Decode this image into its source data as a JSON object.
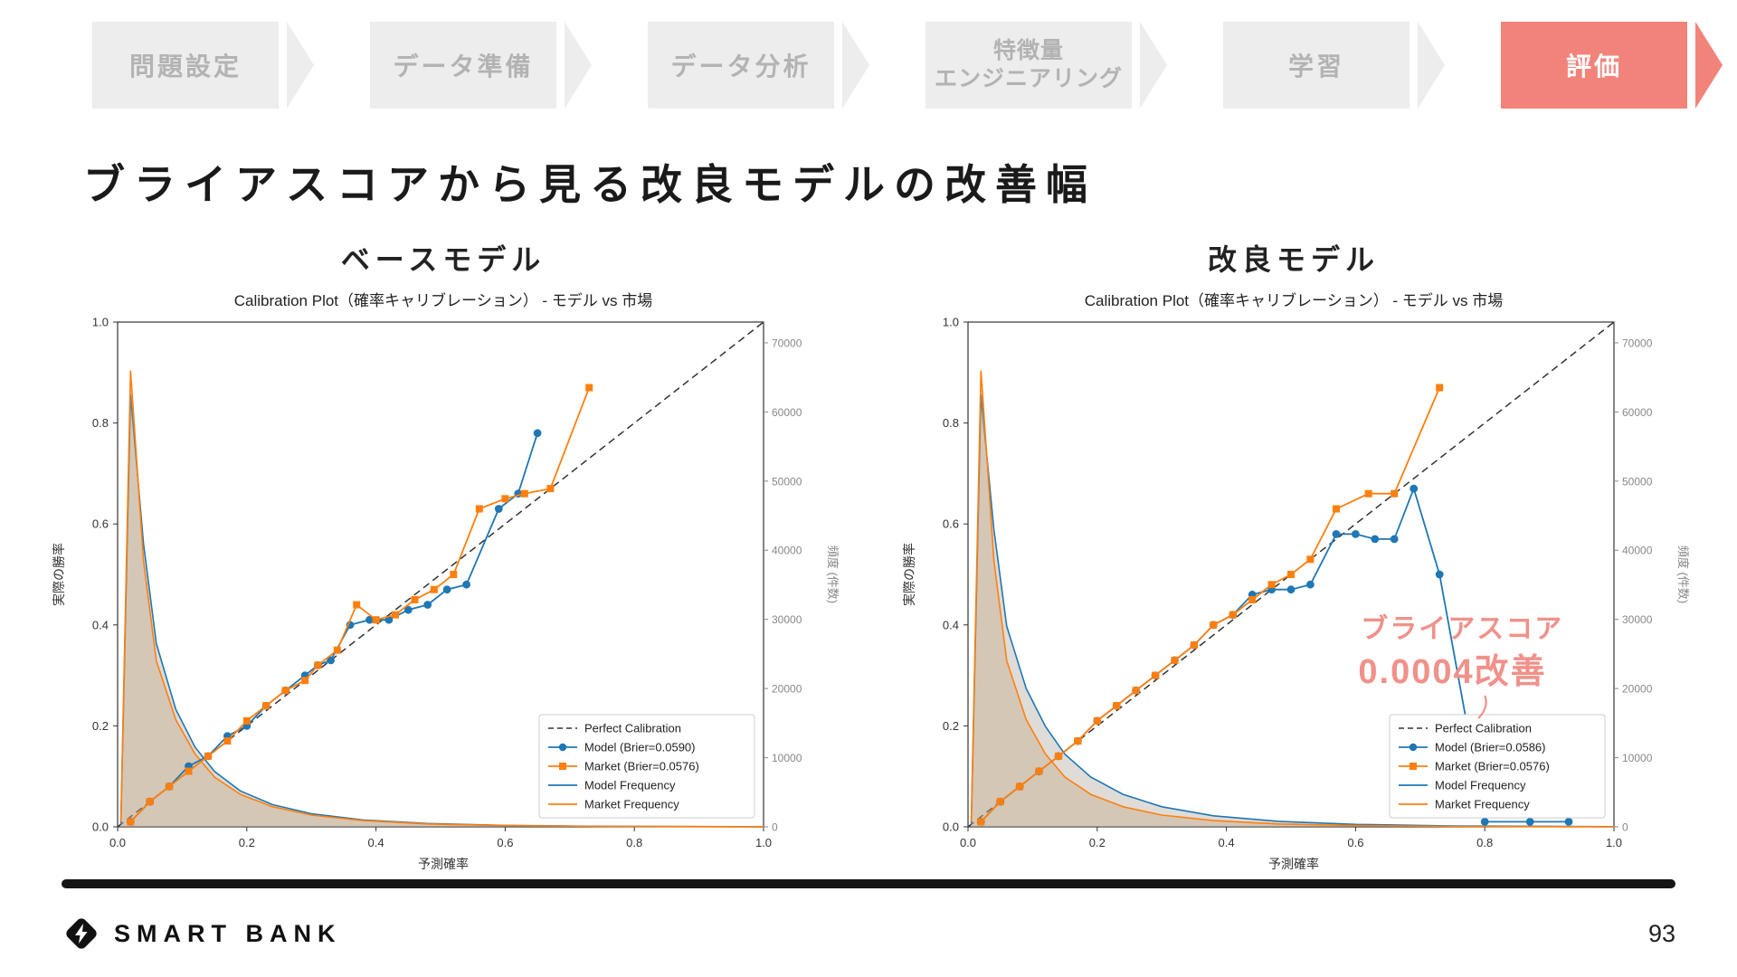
{
  "colors": {
    "accent_salmon": "#f2837b",
    "step_box_gray": "#ededed",
    "step_text_gray": "#b3b3b3",
    "annotation_salmon": "#f0918a",
    "model_blue": "#1f77b4",
    "market_orange": "#ff7f0e"
  },
  "flow": {
    "steps": [
      {
        "label": "問題設定",
        "active": false
      },
      {
        "label": "データ準備",
        "active": false
      },
      {
        "label": "データ分析",
        "active": false
      },
      {
        "lines": [
          "特徴量",
          "エンジニアリング"
        ],
        "active": false
      },
      {
        "label": "学習",
        "active": false
      },
      {
        "label": "評価",
        "active": true
      }
    ]
  },
  "title": "ブライアスコアから見る改良モデルの改善幅",
  "footer": {
    "brand": "SMART BANK",
    "page_number": "93"
  },
  "chart_data": [
    {
      "type": "line",
      "panel_label": "ベースモデル",
      "title": "Calibration Plot（確率キャリブレーション） - モデル vs 市場",
      "xlabel": "予測確率",
      "ylabel_left": "実際の勝率",
      "ylabel_right": "頻度 (件数)",
      "xlim": [
        0,
        1
      ],
      "ylim_left": [
        0,
        1
      ],
      "ylim_right": [
        0,
        73000
      ],
      "x_ticks": [
        0,
        0.2,
        0.4,
        0.6,
        0.8,
        1
      ],
      "y_ticks_left": [
        0,
        0.2,
        0.4,
        0.6,
        0.8,
        1
      ],
      "y_ticks_right": [
        0,
        10000,
        20000,
        30000,
        40000,
        50000,
        60000,
        70000
      ],
      "legend": [
        {
          "label": "Perfect Calibration",
          "style": "dashed",
          "color": "#333333"
        },
        {
          "label": "Model (Brier=0.0590)",
          "style": "line-circle",
          "color": "#1f77b4"
        },
        {
          "label": "Market (Brier=0.0576)",
          "style": "line-square",
          "color": "#ff7f0e"
        },
        {
          "label": "Model Frequency",
          "style": "line",
          "color": "#1f77b4"
        },
        {
          "label": "Market Frequency",
          "style": "line",
          "color": "#ff7f0e"
        }
      ],
      "series": [
        {
          "name": "Model (Brier=0.0590)",
          "kind": "calibration",
          "color": "#1f77b4",
          "marker": "circle",
          "x": [
            0.02,
            0.05,
            0.08,
            0.11,
            0.14,
            0.17,
            0.2,
            0.23,
            0.26,
            0.29,
            0.31,
            0.33,
            0.36,
            0.39,
            0.42,
            0.45,
            0.48,
            0.51,
            0.54,
            0.59,
            0.62,
            0.65
          ],
          "y": [
            0.01,
            0.05,
            0.08,
            0.12,
            0.14,
            0.18,
            0.2,
            0.24,
            0.27,
            0.3,
            0.32,
            0.33,
            0.4,
            0.41,
            0.41,
            0.43,
            0.44,
            0.47,
            0.48,
            0.63,
            0.66,
            0.78
          ]
        },
        {
          "name": "Market (Brier=0.0576)",
          "kind": "calibration",
          "color": "#ff7f0e",
          "marker": "square",
          "x": [
            0.02,
            0.05,
            0.08,
            0.11,
            0.14,
            0.17,
            0.2,
            0.23,
            0.26,
            0.29,
            0.31,
            0.34,
            0.37,
            0.4,
            0.43,
            0.46,
            0.49,
            0.52,
            0.56,
            0.6,
            0.63,
            0.67,
            0.73
          ],
          "y": [
            0.01,
            0.05,
            0.08,
            0.11,
            0.14,
            0.17,
            0.21,
            0.24,
            0.27,
            0.29,
            0.32,
            0.35,
            0.44,
            0.41,
            0.42,
            0.45,
            0.47,
            0.5,
            0.63,
            0.65,
            0.66,
            0.67,
            0.87
          ]
        },
        {
          "name": "Model Frequency",
          "kind": "frequency",
          "color": "#1f77b4",
          "fill": "rgba(150,140,125,0.30)",
          "x": [
            0.005,
            0.02,
            0.04,
            0.06,
            0.09,
            0.12,
            0.15,
            0.19,
            0.24,
            0.3,
            0.38,
            0.48,
            0.6,
            0.75,
            1.0
          ],
          "y": [
            500,
            62500,
            41000,
            26500,
            17000,
            11500,
            8000,
            5200,
            3200,
            1900,
            1000,
            480,
            210,
            80,
            15
          ]
        },
        {
          "name": "Market Frequency",
          "kind": "frequency",
          "color": "#ff7f0e",
          "fill": "rgba(196,160,120,0.35)",
          "x": [
            0.005,
            0.02,
            0.04,
            0.06,
            0.09,
            0.12,
            0.15,
            0.19,
            0.24,
            0.3,
            0.38,
            0.48,
            0.6,
            0.75,
            1.0
          ],
          "y": [
            800,
            66000,
            38500,
            24000,
            15500,
            10500,
            7200,
            4700,
            2900,
            1700,
            900,
            420,
            180,
            70,
            12
          ]
        }
      ]
    },
    {
      "type": "line",
      "panel_label": "改良モデル",
      "title": "Calibration Plot（確率キャリブレーション） - モデル vs 市場",
      "xlabel": "予測確率",
      "ylabel_left": "実際の勝率",
      "ylabel_right": "頻度 (件数)",
      "xlim": [
        0,
        1
      ],
      "ylim_left": [
        0,
        1
      ],
      "ylim_right": [
        0,
        73000
      ],
      "x_ticks": [
        0,
        0.2,
        0.4,
        0.6,
        0.8,
        1
      ],
      "y_ticks_left": [
        0,
        0.2,
        0.4,
        0.6,
        0.8,
        1
      ],
      "y_ticks_right": [
        0,
        10000,
        20000,
        30000,
        40000,
        50000,
        60000,
        70000
      ],
      "legend": [
        {
          "label": "Perfect Calibration",
          "style": "dashed",
          "color": "#333333"
        },
        {
          "label": "Model (Brier=0.0586)",
          "style": "line-circle",
          "color": "#1f77b4"
        },
        {
          "label": "Market (Brier=0.0576)",
          "style": "line-square",
          "color": "#ff7f0e"
        },
        {
          "label": "Model Frequency",
          "style": "line",
          "color": "#1f77b4"
        },
        {
          "label": "Market Frequency",
          "style": "line",
          "color": "#ff7f0e"
        }
      ],
      "series": [
        {
          "name": "Model (Brier=0.0586)",
          "kind": "calibration",
          "color": "#1f77b4",
          "marker": "circle",
          "x": [
            0.02,
            0.05,
            0.08,
            0.11,
            0.14,
            0.17,
            0.2,
            0.23,
            0.26,
            0.29,
            0.32,
            0.35,
            0.38,
            0.41,
            0.44,
            0.47,
            0.5,
            0.53,
            0.57,
            0.6,
            0.63,
            0.66,
            0.69,
            0.73,
            0.8,
            0.87,
            0.93
          ],
          "y": [
            0.01,
            0.05,
            0.08,
            0.11,
            0.14,
            0.17,
            0.21,
            0.24,
            0.27,
            0.3,
            0.33,
            0.36,
            0.4,
            0.42,
            0.46,
            0.47,
            0.47,
            0.48,
            0.58,
            0.58,
            0.57,
            0.57,
            0.67,
            0.5,
            0.01,
            0.01,
            0.01
          ]
        },
        {
          "name": "Market (Brier=0.0576)",
          "kind": "calibration",
          "color": "#ff7f0e",
          "marker": "square",
          "x": [
            0.02,
            0.05,
            0.08,
            0.11,
            0.14,
            0.17,
            0.2,
            0.23,
            0.26,
            0.29,
            0.32,
            0.35,
            0.38,
            0.41,
            0.44,
            0.47,
            0.5,
            0.53,
            0.57,
            0.62,
            0.66,
            0.73
          ],
          "y": [
            0.01,
            0.05,
            0.08,
            0.11,
            0.14,
            0.17,
            0.21,
            0.24,
            0.27,
            0.3,
            0.33,
            0.36,
            0.4,
            0.42,
            0.45,
            0.48,
            0.5,
            0.53,
            0.63,
            0.66,
            0.66,
            0.87
          ]
        },
        {
          "name": "Model Frequency",
          "kind": "frequency",
          "color": "#1f77b4",
          "fill": "rgba(150,140,125,0.30)",
          "x": [
            0.005,
            0.02,
            0.04,
            0.06,
            0.09,
            0.12,
            0.15,
            0.19,
            0.24,
            0.3,
            0.38,
            0.48,
            0.6,
            0.75,
            1.0
          ],
          "y": [
            500,
            62500,
            43000,
            29000,
            20000,
            14500,
            10500,
            7200,
            4700,
            2900,
            1600,
            800,
            350,
            130,
            25
          ]
        },
        {
          "name": "Market Frequency",
          "kind": "frequency",
          "color": "#ff7f0e",
          "fill": "rgba(196,160,120,0.35)",
          "x": [
            0.005,
            0.02,
            0.04,
            0.06,
            0.09,
            0.12,
            0.15,
            0.19,
            0.24,
            0.3,
            0.38,
            0.48,
            0.6,
            0.75,
            1.0
          ],
          "y": [
            800,
            66000,
            38500,
            24000,
            15500,
            10500,
            7200,
            4700,
            2900,
            1700,
            900,
            420,
            180,
            70,
            12
          ]
        }
      ],
      "annotation": {
        "color": "#f0918a",
        "lines": [
          {
            "text": "ブライアスコア",
            "x": 0.765,
            "y": 0.375,
            "size": 30
          },
          {
            "text": "0.0004改善",
            "x": 0.75,
            "y": 0.285,
            "size": 38
          }
        ],
        "connector": {
          "x1": 0.8,
          "y1": 0.26,
          "x2": 0.79,
          "y2": 0.215
        }
      }
    }
  ]
}
